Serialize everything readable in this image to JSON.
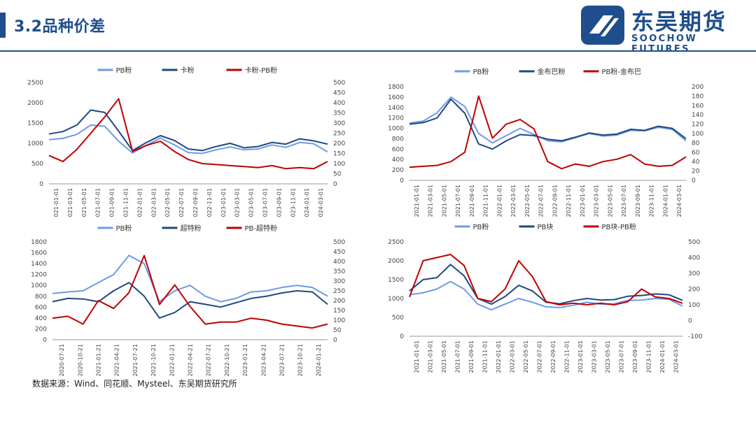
{
  "page": {
    "title": "3.2品种价差",
    "source": "数据来源：Wind、同花顺、Mysteel、东吴期货研究所"
  },
  "logo": {
    "cn": "东吴期货",
    "en": "SOOCHOW FUTURES"
  },
  "colors": {
    "light": "#6f9ae8",
    "dark": "#1e4a7f",
    "red": "#c00000",
    "brand": "#1f4e8c"
  },
  "chart_data": [
    {
      "type": "line",
      "legend": [
        "PB粉",
        "卡粉",
        "卡粉-PB粉"
      ],
      "left_axis": {
        "min": 0,
        "max": 2500,
        "ticks": [
          "0",
          "500",
          "1000",
          "1500",
          "2000",
          "2500"
        ]
      },
      "right_axis": {
        "min": 0,
        "max": 500,
        "ticks": [
          "0",
          "50",
          "100",
          "150",
          "200",
          "250",
          "300",
          "350",
          "400",
          "450",
          "500"
        ]
      },
      "x_labels": [
        "2021-01-01",
        "2021-03-01",
        "2021-05-01",
        "2021-07-01",
        "2021-09-01",
        "2021-11-01",
        "2022-01-01",
        "2022-03-01",
        "2022-05-01",
        "2022-07-01",
        "2022-09-01",
        "2022-11-01",
        "2023-01-01",
        "2023-03-01",
        "2023-05-01",
        "2023-07-01",
        "2023-09-01",
        "2023-11-01",
        "2024-01-01",
        "2024-03-01"
      ],
      "series": [
        {
          "name": "PB粉",
          "color": "light",
          "axis": "left",
          "values": [
            1090,
            1120,
            1220,
            1450,
            1420,
            1050,
            760,
            950,
            1130,
            960,
            770,
            750,
            840,
            910,
            840,
            860,
            960,
            900,
            1020,
            990,
            790
          ]
        },
        {
          "name": "卡粉",
          "color": "dark",
          "axis": "left",
          "values": [
            1230,
            1290,
            1450,
            1820,
            1760,
            1300,
            820,
            1020,
            1190,
            1070,
            860,
            820,
            920,
            1000,
            890,
            920,
            1020,
            980,
            1110,
            1060,
            980
          ]
        },
        {
          "name": "卡粉-PB粉",
          "color": "red",
          "axis": "right",
          "values": [
            140,
            110,
            170,
            250,
            330,
            420,
            160,
            190,
            210,
            160,
            120,
            100,
            95,
            90,
            85,
            80,
            90,
            75,
            80,
            75,
            110
          ]
        }
      ]
    },
    {
      "type": "line",
      "legend": [
        "PB粉",
        "金布巴粉",
        "PB粉-金布巴"
      ],
      "left_axis": {
        "min": 0,
        "max": 1800,
        "ticks": [
          "0",
          "200",
          "400",
          "600",
          "800",
          "1000",
          "1200",
          "1400",
          "1600",
          "1800"
        ]
      },
      "right_axis": {
        "min": 0,
        "max": 200,
        "ticks": [
          "0",
          "20",
          "40",
          "60",
          "80",
          "100",
          "120",
          "140",
          "160",
          "180",
          "200"
        ]
      },
      "x_labels": [
        "2021-01-01",
        "2021-03-01",
        "2021-05-01",
        "2021-07-01",
        "2021-09-01",
        "2021-11-01",
        "2022-01-01",
        "2022-03-01",
        "2022-05-01",
        "2022-07-01",
        "2022-09-01",
        "2022-11-01",
        "2023-01-01",
        "2023-03-01",
        "2023-05-01",
        "2023-07-01",
        "2023-09-01",
        "2023-11-01",
        "2024-01-01",
        "2024-03-01"
      ],
      "series": [
        {
          "name": "PB粉",
          "color": "light",
          "axis": "left",
          "values": [
            1100,
            1140,
            1300,
            1600,
            1420,
            900,
            720,
            860,
            1000,
            880,
            760,
            740,
            820,
            900,
            850,
            870,
            960,
            950,
            1020,
            980,
            760
          ]
        },
        {
          "name": "金布巴粉",
          "color": "dark",
          "axis": "left",
          "values": [
            1080,
            1110,
            1200,
            1560,
            1290,
            700,
            600,
            760,
            880,
            860,
            790,
            760,
            830,
            910,
            870,
            890,
            980,
            960,
            1040,
            1000,
            800
          ]
        },
        {
          "name": "PB粉-金布巴",
          "color": "red",
          "axis": "right",
          "values": [
            28,
            30,
            32,
            40,
            60,
            180,
            90,
            120,
            130,
            110,
            40,
            25,
            35,
            30,
            40,
            45,
            55,
            35,
            30,
            32,
            50
          ]
        }
      ]
    },
    {
      "type": "line",
      "legend": [
        "PB粉",
        "超特粉",
        "PB-超特粉"
      ],
      "left_axis": {
        "min": 0,
        "max": 1800,
        "ticks": [
          "0",
          "200",
          "400",
          "600",
          "800",
          "1000",
          "1200",
          "1400",
          "1600",
          "1800"
        ]
      },
      "right_axis": {
        "min": 0,
        "max": 500,
        "ticks": [
          "0",
          "50",
          "100",
          "150",
          "200",
          "250",
          "300",
          "350",
          "400",
          "450",
          "500"
        ]
      },
      "x_labels": [
        "2020-07-21",
        "2020-10-21",
        "2021-01-21",
        "2021-04-21",
        "2021-07-21",
        "2021-10-21",
        "2022-01-21",
        "2022-04-21",
        "2022-07-21",
        "2022-10-21",
        "2023-01-21",
        "2023-04-21",
        "2023-07-21",
        "2023-10-21",
        "2024-01-21"
      ],
      "series": [
        {
          "name": "PB粉",
          "color": "light",
          "axis": "left",
          "values": [
            850,
            880,
            900,
            1050,
            1200,
            1550,
            1400,
            700,
            900,
            1000,
            800,
            700,
            760,
            880,
            900,
            960,
            1000,
            960,
            800
          ]
        },
        {
          "name": "超特粉",
          "color": "dark",
          "axis": "left",
          "values": [
            700,
            760,
            750,
            700,
            900,
            1050,
            800,
            400,
            500,
            700,
            650,
            600,
            680,
            760,
            800,
            860,
            900,
            880,
            650
          ]
        },
        {
          "name": "PB-超特粉",
          "color": "red",
          "axis": "right",
          "values": [
            110,
            120,
            80,
            200,
            160,
            240,
            430,
            180,
            280,
            170,
            80,
            90,
            90,
            110,
            100,
            80,
            70,
            60,
            80
          ]
        }
      ]
    },
    {
      "type": "line",
      "legend": [
        "PB粉",
        "PB块",
        "PB块-PB粉"
      ],
      "left_axis": {
        "min": 0,
        "max": 2500,
        "ticks": [
          "0",
          "500",
          "1000",
          "1500",
          "2000",
          "2500"
        ]
      },
      "right_axis": {
        "min": -100,
        "max": 500,
        "ticks": [
          "-100",
          "0",
          "100",
          "200",
          "300",
          "400",
          "500"
        ]
      },
      "x_labels": [
        "2021-01-01",
        "2021-03-01",
        "2021-05-01",
        "2021-07-01",
        "2021-09-01",
        "2021-11-01",
        "2022-01-01",
        "2022-03-01",
        "2022-05-01",
        "2022-07-01",
        "2022-09-01",
        "2022-11-01",
        "2023-01-01",
        "2023-03-01",
        "2023-05-01",
        "2023-07-01",
        "2023-09-01",
        "2023-11-01",
        "2024-01-01",
        "2024-03-01"
      ],
      "series": [
        {
          "name": "PB粉",
          "color": "light",
          "axis": "left",
          "values": [
            1100,
            1150,
            1250,
            1450,
            1250,
            850,
            700,
            850,
            1000,
            900,
            780,
            760,
            820,
            900,
            850,
            860,
            950,
            960,
            1000,
            980,
            800
          ]
        },
        {
          "name": "PB块",
          "color": "dark",
          "axis": "left",
          "values": [
            1200,
            1500,
            1550,
            1900,
            1600,
            1000,
            850,
            1050,
            1350,
            1200,
            900,
            860,
            940,
            1000,
            960,
            970,
            1060,
            1080,
            1120,
            1100,
            950
          ]
        },
        {
          "name": "PB块-PB粉",
          "color": "red",
          "axis": "right",
          "values": [
            150,
            380,
            400,
            420,
            350,
            140,
            120,
            200,
            380,
            280,
            120,
            100,
            110,
            100,
            110,
            100,
            120,
            200,
            150,
            140,
            110
          ]
        }
      ]
    }
  ]
}
